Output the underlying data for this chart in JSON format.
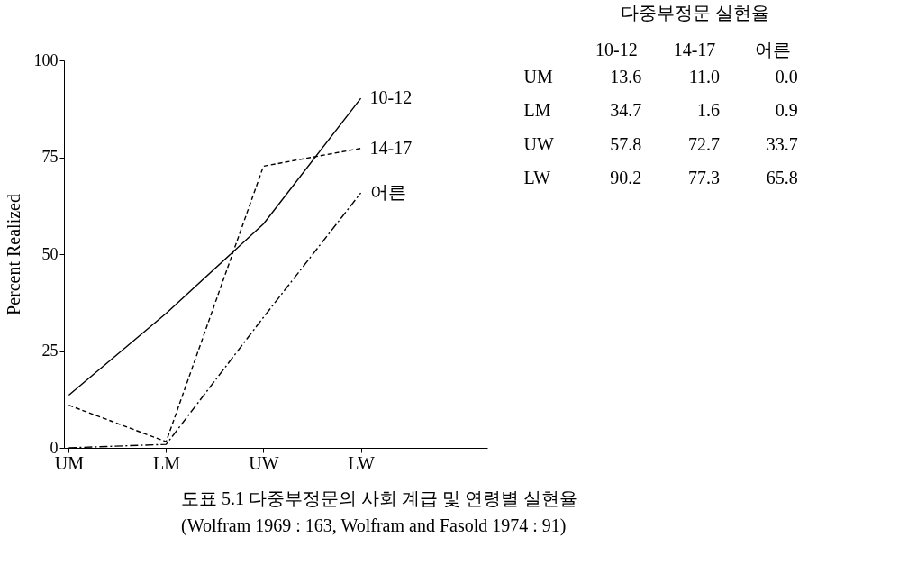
{
  "chart_data": [
    {
      "type": "line",
      "ylabel": "Percent Realized",
      "categories": [
        "UM",
        "LM",
        "UW",
        "LW"
      ],
      "series": [
        {
          "name": "10-12",
          "color": "#000000",
          "line_style": "solid",
          "values": [
            13.6,
            34.7,
            57.8,
            90.2
          ]
        },
        {
          "name": "14-17",
          "color": "#000000",
          "line_style": "dashed",
          "values": [
            11.0,
            1.6,
            72.7,
            77.3
          ]
        },
        {
          "name": "어른",
          "color": "#000000",
          "line_style": "dotted",
          "values": [
            0.0,
            0.9,
            33.7,
            65.8
          ]
        }
      ],
      "ylim": [
        0,
        100
      ],
      "yticks": [
        0,
        25,
        50,
        75,
        100
      ],
      "grid": false,
      "legend": false,
      "marker": "none",
      "annotations": [
        "도표 5.1  다중부정문의 사회 계급 및 연령별 실현율",
        "(Wolfram 1969 : 163,  Wolfram and Fasold 1974 : 91)"
      ]
    },
    {
      "type": "heatmap",
      "title": "다중부정문 실현율",
      "categories": [
        "10-12",
        "14-17",
        "어른"
      ],
      "y_categories": [
        "UM",
        "LM",
        "UW",
        "LW"
      ],
      "cells": [
        [
          13.6,
          11.0,
          0.0
        ],
        [
          34.7,
          1.6,
          0.9
        ],
        [
          57.8,
          72.7,
          33.7
        ],
        [
          90.2,
          77.3,
          65.8
        ]
      ],
      "cell_labels": [
        [
          "13.6",
          "11.0",
          "0.0"
        ],
        [
          "34.7",
          "1.6",
          "0.9"
        ],
        [
          "57.8",
          "72.7",
          "33.7"
        ],
        [
          "90.2",
          "77.3",
          "65.8"
        ]
      ],
      "data_labels": true
    }
  ]
}
